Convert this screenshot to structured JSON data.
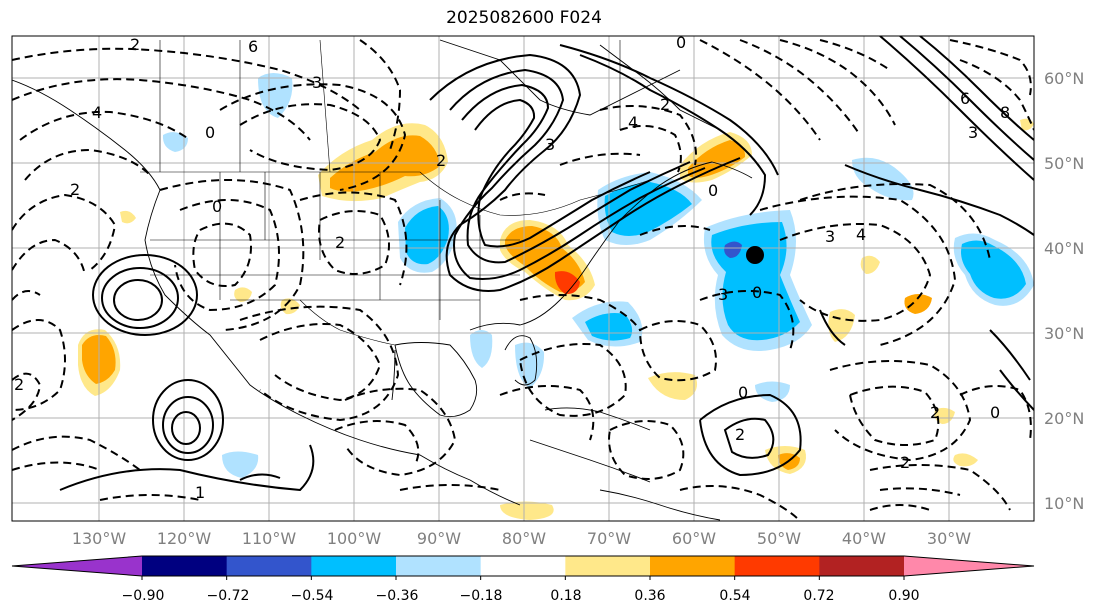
{
  "title": "2025082600 F024",
  "lat_ticks": [
    "60°N",
    "50°N",
    "40°N",
    "30°N",
    "20°N",
    "10°N"
  ],
  "lon_ticks": [
    "130°W",
    "120°W",
    "110°W",
    "100°W",
    "90°W",
    "80°W",
    "70°W",
    "60°W",
    "50°W",
    "40°W",
    "30°W"
  ],
  "colorbar": {
    "ticks": [
      "−0.90",
      "−0.72",
      "−0.54",
      "−0.36",
      "−0.18",
      "0.18",
      "0.36",
      "0.54",
      "0.72",
      "0.90"
    ],
    "colors": [
      "#9933cc",
      "#000080",
      "#3355cc",
      "#00bfff",
      "#b0e2ff",
      "#ffffff",
      "#ffe88a",
      "#ffa500",
      "#ff3a00",
      "#b22222",
      "#ff88aa"
    ]
  },
  "contour_labels": [
    "6",
    "2",
    "3",
    "0",
    "4",
    "2",
    "2",
    "3",
    "0",
    "2",
    "4",
    "0",
    "3",
    "4",
    "3",
    "0",
    "0",
    "2",
    "2",
    "0",
    "2",
    "2",
    "0",
    "2",
    "1",
    "6",
    "8",
    "3"
  ]
}
